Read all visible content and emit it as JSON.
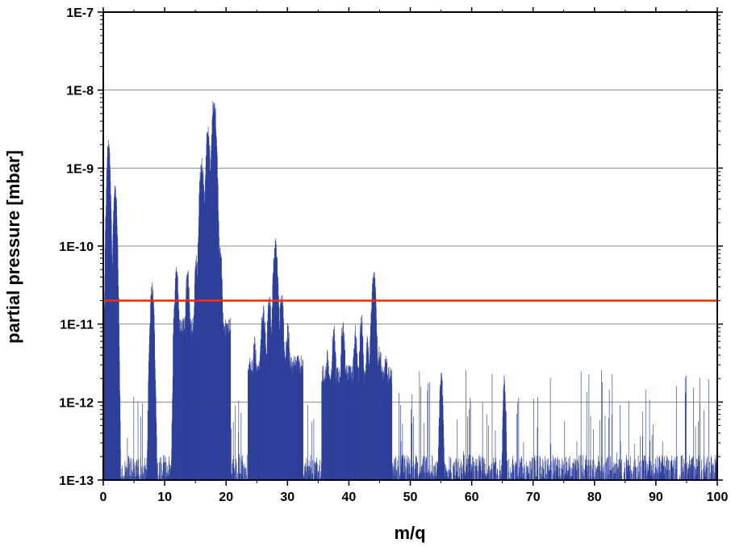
{
  "chart_data": {
    "type": "bar",
    "title": "",
    "xlabel": "m/q",
    "ylabel": "partial pressure [mbar]",
    "xlim": [
      0,
      100
    ],
    "ylim": [
      1e-13,
      1e-07
    ],
    "yscale": "log",
    "grid": true,
    "x_ticks": [
      "0",
      "10",
      "20",
      "30",
      "40",
      "50",
      "60",
      "70",
      "80",
      "90",
      "100"
    ],
    "y_ticks": [
      "1E-13",
      "1E-12",
      "1E-11",
      "1E-10",
      "1E-9",
      "1E-8",
      "1E-7"
    ],
    "reference_line": {
      "y": 2e-11,
      "color": "#ff2a00"
    },
    "bar_color": "#2e3f9a",
    "series": [
      {
        "name": "partial pressure",
        "peaks": [
          {
            "x": 0.8,
            "y": 2.6e-09,
            "w": 0.35
          },
          {
            "x": 1.9,
            "y": 8e-10,
            "w": 0.35
          },
          {
            "x": 7.9,
            "y": 3.5e-11,
            "w": 0.4
          },
          {
            "x": 11.9,
            "y": 6e-11,
            "w": 0.4
          },
          {
            "x": 13.7,
            "y": 5.5e-11,
            "w": 0.4
          },
          {
            "x": 15.1,
            "y": 8e-11,
            "w": 0.35
          },
          {
            "x": 16.0,
            "y": 1.5e-09,
            "w": 0.45
          },
          {
            "x": 17.0,
            "y": 4e-09,
            "w": 0.4
          },
          {
            "x": 18.0,
            "y": 9e-09,
            "w": 0.45
          },
          {
            "x": 19.0,
            "y": 1.2e-10,
            "w": 0.35
          },
          {
            "x": 24.6,
            "y": 7e-12,
            "w": 0.4
          },
          {
            "x": 26.0,
            "y": 2e-11,
            "w": 0.45
          },
          {
            "x": 27.0,
            "y": 2.5e-11,
            "w": 0.4
          },
          {
            "x": 28.0,
            "y": 1.4e-10,
            "w": 0.45
          },
          {
            "x": 29.0,
            "y": 3e-11,
            "w": 0.4
          },
          {
            "x": 30.0,
            "y": 1.2e-11,
            "w": 0.4
          },
          {
            "x": 31.5,
            "y": 3e-12,
            "w": 0.4
          },
          {
            "x": 36.5,
            "y": 5e-12,
            "w": 0.4
          },
          {
            "x": 37.5,
            "y": 1e-11,
            "w": 0.4
          },
          {
            "x": 39.0,
            "y": 1.3e-11,
            "w": 0.4
          },
          {
            "x": 41.0,
            "y": 1e-11,
            "w": 0.4
          },
          {
            "x": 42.0,
            "y": 1.4e-11,
            "w": 0.4
          },
          {
            "x": 43.0,
            "y": 8e-12,
            "w": 0.4
          },
          {
            "x": 44.0,
            "y": 5.5e-11,
            "w": 0.45
          },
          {
            "x": 45.0,
            "y": 6e-12,
            "w": 0.4
          },
          {
            "x": 46.0,
            "y": 5e-12,
            "w": 0.4
          },
          {
            "x": 55.0,
            "y": 2.6e-12,
            "w": 0.35
          },
          {
            "x": 65.3,
            "y": 2.3e-12,
            "w": 0.3
          }
        ],
        "plateaus": [
          {
            "x0": 11.3,
            "x1": 20.7,
            "y": 1.2e-11
          },
          {
            "x0": 23.5,
            "x1": 32.5,
            "y": 4e-12
          },
          {
            "x0": 35.5,
            "x1": 47.0,
            "y": 3e-12
          }
        ],
        "baseline": 1.5e-13
      }
    ]
  }
}
